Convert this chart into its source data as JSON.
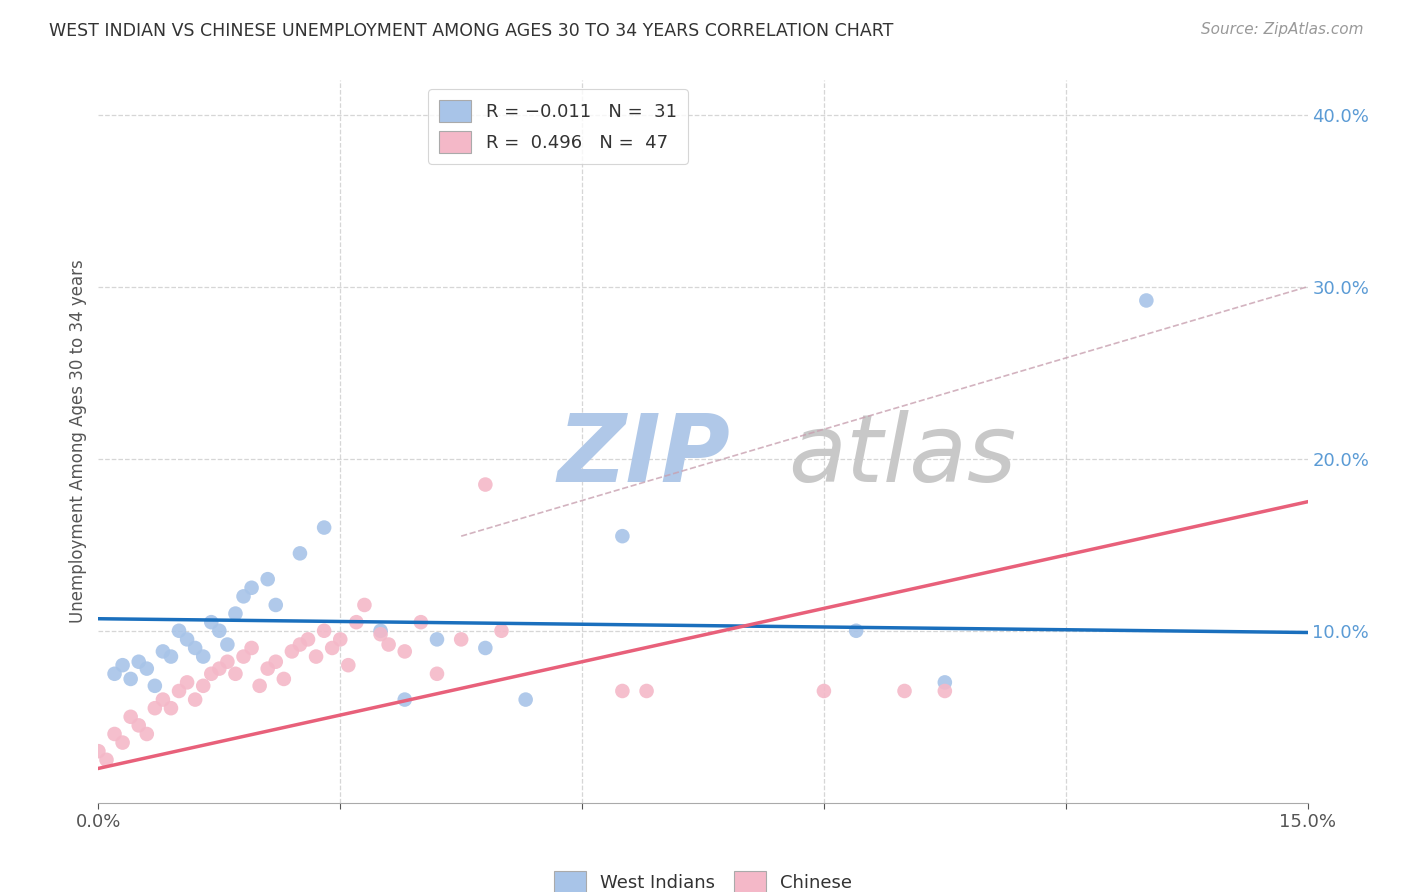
{
  "title": "WEST INDIAN VS CHINESE UNEMPLOYMENT AMONG AGES 30 TO 34 YEARS CORRELATION CHART",
  "source": "Source: ZipAtlas.com",
  "ylabel": "Unemployment Among Ages 30 to 34 years",
  "xlim": [
    0.0,
    0.15
  ],
  "ylim": [
    0.0,
    0.42
  ],
  "xticks": [
    0.0,
    0.03,
    0.06,
    0.09,
    0.12,
    0.15
  ],
  "xticklabels": [
    "0.0%",
    "",
    "",
    "",
    "",
    "15.0%"
  ],
  "yticks_right": [
    0.1,
    0.2,
    0.3,
    0.4
  ],
  "yticklabels_right": [
    "10.0%",
    "20.0%",
    "30.0%",
    "40.0%"
  ],
  "west_indian_color": "#a8c4e8",
  "chinese_color": "#f4b8c8",
  "west_indian_line_color": "#1a6fbd",
  "chinese_line_color": "#e8607a",
  "dashed_line_color": "#c8a0b0",
  "background_color": "#ffffff",
  "grid_color": "#cccccc",
  "west_indians_x": [
    0.002,
    0.003,
    0.004,
    0.005,
    0.006,
    0.007,
    0.008,
    0.009,
    0.01,
    0.011,
    0.012,
    0.013,
    0.014,
    0.015,
    0.016,
    0.017,
    0.018,
    0.019,
    0.021,
    0.022,
    0.025,
    0.028,
    0.035,
    0.038,
    0.042,
    0.048,
    0.053,
    0.065,
    0.094,
    0.105,
    0.13
  ],
  "west_indians_y": [
    0.075,
    0.08,
    0.072,
    0.082,
    0.078,
    0.068,
    0.088,
    0.085,
    0.1,
    0.095,
    0.09,
    0.085,
    0.105,
    0.1,
    0.092,
    0.11,
    0.12,
    0.125,
    0.13,
    0.115,
    0.145,
    0.16,
    0.1,
    0.06,
    0.095,
    0.09,
    0.06,
    0.155,
    0.1,
    0.07,
    0.292
  ],
  "chinese_x": [
    0.0,
    0.001,
    0.002,
    0.003,
    0.004,
    0.005,
    0.006,
    0.007,
    0.008,
    0.009,
    0.01,
    0.011,
    0.012,
    0.013,
    0.014,
    0.015,
    0.016,
    0.017,
    0.018,
    0.019,
    0.02,
    0.021,
    0.022,
    0.023,
    0.024,
    0.025,
    0.026,
    0.027,
    0.028,
    0.029,
    0.03,
    0.031,
    0.032,
    0.033,
    0.035,
    0.036,
    0.038,
    0.04,
    0.042,
    0.045,
    0.048,
    0.05,
    0.065,
    0.068,
    0.09,
    0.1,
    0.105
  ],
  "chinese_y": [
    0.03,
    0.025,
    0.04,
    0.035,
    0.05,
    0.045,
    0.04,
    0.055,
    0.06,
    0.055,
    0.065,
    0.07,
    0.06,
    0.068,
    0.075,
    0.078,
    0.082,
    0.075,
    0.085,
    0.09,
    0.068,
    0.078,
    0.082,
    0.072,
    0.088,
    0.092,
    0.095,
    0.085,
    0.1,
    0.09,
    0.095,
    0.08,
    0.105,
    0.115,
    0.098,
    0.092,
    0.088,
    0.105,
    0.075,
    0.095,
    0.185,
    0.1,
    0.065,
    0.065,
    0.065,
    0.065,
    0.065
  ],
  "wi_line_x": [
    0.0,
    0.15
  ],
  "wi_line_y": [
    0.107,
    0.099
  ],
  "ch_line_x": [
    0.0,
    0.15
  ],
  "ch_line_y": [
    0.02,
    0.175
  ],
  "dash_line_x": [
    0.045,
    0.15
  ],
  "dash_line_y": [
    0.155,
    0.3
  ],
  "watermark_zip": "ZIP",
  "watermark_atlas": "atlas",
  "watermark_color": "#c8d8ee"
}
